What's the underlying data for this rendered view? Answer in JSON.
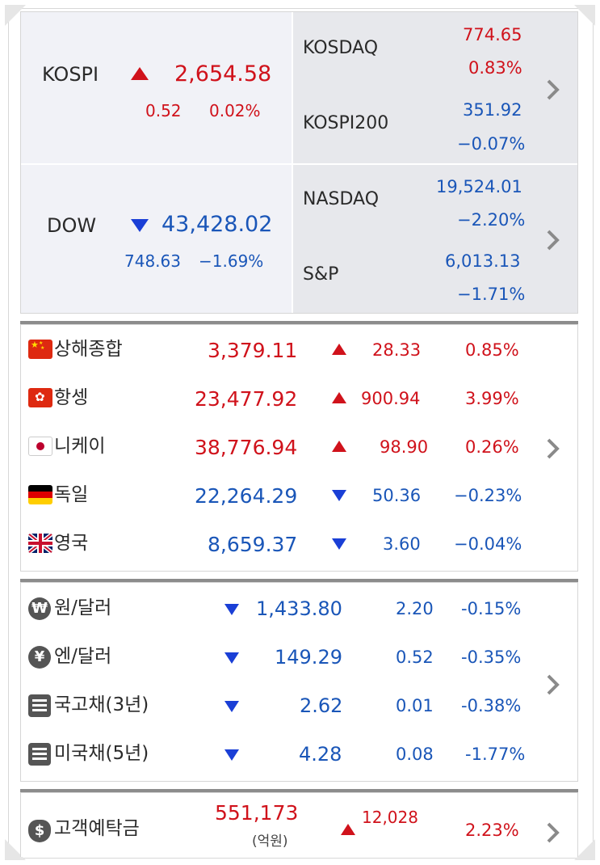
{
  "indices_top": {
    "kospi": {
      "name": "KOSPI",
      "value": "2,654.58",
      "change": "0.52",
      "rate": "0.02%"
    },
    "kosdaq": {
      "name": "KOSDAQ",
      "value": "774.65",
      "rate": "0.83%"
    },
    "kospi200": {
      "name": "KOSPI200",
      "value": "351.92",
      "rate": "−0.07%"
    },
    "dow": {
      "name": "DOW",
      "value": "43,428.02",
      "change": "748.63",
      "rate": "−1.69%"
    },
    "nasdaq": {
      "name": "NASDAQ",
      "value": "19,524.01",
      "rate": "−2.20%"
    },
    "sp": {
      "name": "S&P",
      "value": "6,013.13",
      "rate": "−1.71%"
    }
  },
  "world": [
    {
      "name": "상해종합",
      "value": "3,379.11",
      "change": "28.33",
      "rate": "0.85%",
      "dir": "up",
      "flag": "china-flag-icon"
    },
    {
      "name": "항셍",
      "value": "23,477.92",
      "change": "900.94",
      "rate": "3.99%",
      "dir": "up",
      "flag": "hongkong-flag-icon"
    },
    {
      "name": "니케이",
      "value": "38,776.94",
      "change": "98.90",
      "rate": "0.26%",
      "dir": "up",
      "flag": "japan-flag-icon"
    },
    {
      "name": "독일",
      "value": "22,264.29",
      "change": "50.36",
      "rate": "−0.23%",
      "dir": "down",
      "flag": "germany-flag-icon"
    },
    {
      "name": "영국",
      "value": "8,659.37",
      "change": "3.60",
      "rate": "−0.04%",
      "dir": "down",
      "flag": "uk-flag-icon"
    }
  ],
  "fx": [
    {
      "name": "원/달러",
      "value": "1,433.80",
      "change": "2.20",
      "rate": "-0.15%",
      "icon": "won-icon",
      "glyph": "₩"
    },
    {
      "name": "엔/달러",
      "value": "149.29",
      "change": "0.52",
      "rate": "-0.35%",
      "icon": "yen-icon",
      "glyph": "¥"
    },
    {
      "name": "국고채(3년)",
      "value": "2.62",
      "change": "0.01",
      "rate": "-0.38%",
      "icon": "document-icon"
    },
    {
      "name": "미국채(5년)",
      "value": "4.28",
      "change": "0.08",
      "rate": "-1.77%",
      "icon": "document-icon"
    }
  ],
  "deposit": {
    "name": "고객예탁금",
    "value": "551,173",
    "unit": "(억원)",
    "change": "12,028",
    "rate": "2.23%",
    "glyph": "$"
  }
}
